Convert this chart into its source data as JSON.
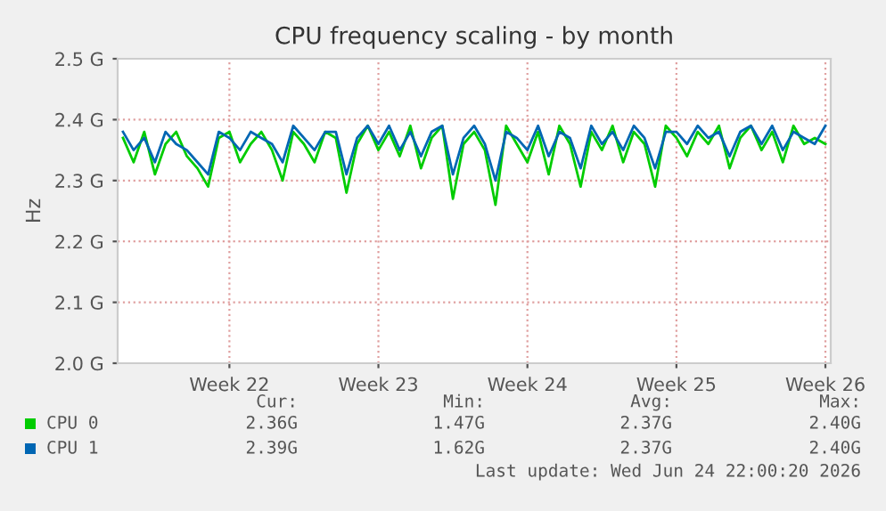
{
  "chart_data": {
    "type": "line",
    "title": "CPU frequency scaling - by month",
    "ylabel": "Hz",
    "categories": [
      null,
      null,
      null,
      null,
      null,
      null,
      null,
      null,
      null,
      null,
      "Week 22",
      null,
      null,
      null,
      null,
      null,
      null,
      null,
      null,
      null,
      null,
      null,
      null,
      null,
      "Week 23",
      null,
      null,
      null,
      null,
      null,
      null,
      null,
      null,
      null,
      null,
      null,
      null,
      null,
      "Week 24",
      null,
      null,
      null,
      null,
      null,
      null,
      null,
      null,
      null,
      null,
      null,
      null,
      null,
      "Week 25",
      null,
      null,
      null,
      null,
      null,
      null,
      null,
      null,
      null,
      null,
      null,
      null,
      null,
      "Week 26"
    ],
    "series": [
      {
        "name": "CPU 0",
        "color": "#00cc00",
        "values": [
          2.37,
          2.33,
          2.38,
          2.31,
          2.36,
          2.38,
          2.34,
          2.32,
          2.29,
          2.37,
          2.38,
          2.33,
          2.36,
          2.38,
          2.35,
          2.3,
          2.38,
          2.36,
          2.33,
          2.38,
          2.37,
          2.28,
          2.36,
          2.39,
          2.35,
          2.38,
          2.34,
          2.39,
          2.32,
          2.37,
          2.39,
          2.27,
          2.36,
          2.38,
          2.35,
          2.26,
          2.39,
          2.36,
          2.33,
          2.38,
          2.31,
          2.39,
          2.36,
          2.29,
          2.38,
          2.35,
          2.39,
          2.33,
          2.38,
          2.36,
          2.29,
          2.39,
          2.37,
          2.34,
          2.38,
          2.36,
          2.39,
          2.32,
          2.37,
          2.39,
          2.35,
          2.38,
          2.33,
          2.39,
          2.36,
          2.37,
          2.36
        ]
      },
      {
        "name": "CPU 1",
        "color": "#0066b3",
        "values": [
          2.38,
          2.35,
          2.37,
          2.33,
          2.38,
          2.36,
          2.35,
          2.33,
          2.31,
          2.38,
          2.37,
          2.35,
          2.38,
          2.37,
          2.36,
          2.33,
          2.39,
          2.37,
          2.35,
          2.38,
          2.38,
          2.31,
          2.37,
          2.39,
          2.36,
          2.39,
          2.35,
          2.38,
          2.34,
          2.38,
          2.39,
          2.31,
          2.37,
          2.39,
          2.36,
          2.3,
          2.38,
          2.37,
          2.35,
          2.39,
          2.34,
          2.38,
          2.37,
          2.32,
          2.39,
          2.36,
          2.38,
          2.35,
          2.39,
          2.37,
          2.32,
          2.38,
          2.38,
          2.36,
          2.39,
          2.37,
          2.38,
          2.34,
          2.38,
          2.39,
          2.36,
          2.39,
          2.35,
          2.38,
          2.37,
          2.36,
          2.39
        ]
      }
    ],
    "ylim": [
      2.0,
      2.5
    ],
    "yticks": [
      {
        "value": 2.0,
        "label": "2.0 G"
      },
      {
        "value": 2.1,
        "label": "2.1 G"
      },
      {
        "value": 2.2,
        "label": "2.2 G"
      },
      {
        "value": 2.3,
        "label": "2.3 G"
      },
      {
        "value": 2.4,
        "label": "2.4 G"
      },
      {
        "value": 2.5,
        "label": "2.5 G"
      }
    ],
    "grid": true,
    "legend": "bottom",
    "marker": "none",
    "line_style": "solid",
    "annotations": [
      "Cur:",
      "Min:",
      "Avg:",
      "Max:",
      "2.36G",
      "1.47G",
      "2.37G",
      "2.40G",
      "2.39G",
      "1.62G",
      "2.37G",
      "2.40G",
      "Last update: Wed Jun 24 22:00:20 2026"
    ]
  }
}
